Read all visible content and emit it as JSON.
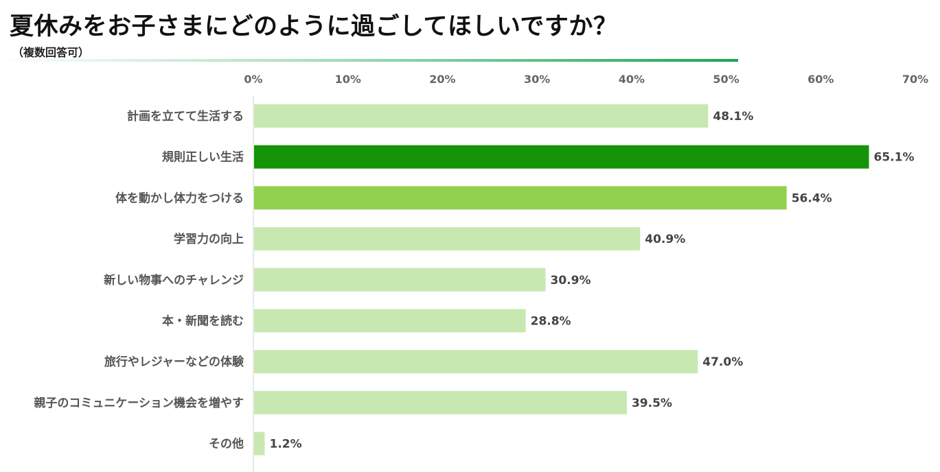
{
  "title": "夏休みをお子さまにどのように過ごしてほしいですか？",
  "subtitle": "（複数回答可）",
  "colors": {
    "default": "#c8e8b2",
    "highlight_1": "#149406",
    "highlight_2": "#92d050",
    "axis": "#d0d0d0"
  },
  "chart_data": {
    "type": "bar",
    "orientation": "horizontal",
    "title": "夏休みをお子さまにどのように過ごしてほしいですか？",
    "subtitle": "（複数回答可）",
    "xlim": [
      0,
      70
    ],
    "x_ticks": [
      "0%",
      "10%",
      "20%",
      "30%",
      "40%",
      "50%",
      "60%",
      "70%"
    ],
    "x_axis_position": "top",
    "grid": false,
    "categories": [
      "計画を立てて生活する",
      "規則正しい生活",
      "体を動かし体力をつける",
      "学習力の向上",
      "新しい物事へのチャレンジ",
      "本・新聞を読む",
      "旅行やレジャーなどの体験",
      "親子のコミュニケーション機会を増やす",
      "その他"
    ],
    "values": [
      48.1,
      65.1,
      56.4,
      40.9,
      30.9,
      28.8,
      47.0,
      39.5,
      1.2
    ],
    "value_labels": [
      "48.1%",
      "65.1%",
      "56.4%",
      "40.9%",
      "30.9%",
      "28.8%",
      "47.0%",
      "39.5%",
      "1.2%"
    ],
    "bar_colors": [
      "#c8e8b2",
      "#149406",
      "#92d050",
      "#c8e8b2",
      "#c8e8b2",
      "#c8e8b2",
      "#c8e8b2",
      "#c8e8b2",
      "#c8e8b2"
    ]
  }
}
